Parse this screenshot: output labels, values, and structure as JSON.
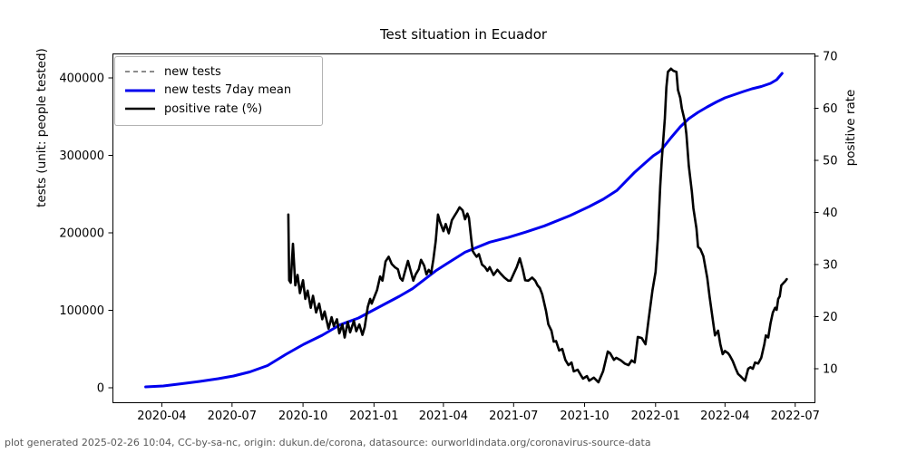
{
  "title": "Test situation in Ecuador",
  "footer": "plot generated 2025-02-26 10:04, CC-by-sa-nc, origin: dukun.de/corona, datasource: ourworldindata.org/coronavirus-source-data",
  "colors": {
    "background": "#ffffff",
    "axis": "#000000",
    "footer_text": "#595959",
    "new_tests": "#8c8c8c",
    "seven_day_mean": "#0000ee",
    "positive_rate": "#000000"
  },
  "chart_data": {
    "type": "line",
    "title": "Test situation in Ecuador",
    "xlabel": "",
    "x_axis": {
      "epoch": "days since 2020-01-01",
      "range_days": [
        27,
        937
      ],
      "ticks": [
        {
          "day": 91,
          "label": "2020-04"
        },
        {
          "day": 182,
          "label": "2020-07"
        },
        {
          "day": 274,
          "label": "2020-10"
        },
        {
          "day": 366,
          "label": "2021-01"
        },
        {
          "day": 456,
          "label": "2021-04"
        },
        {
          "day": 547,
          "label": "2021-07"
        },
        {
          "day": 639,
          "label": "2021-10"
        },
        {
          "day": 731,
          "label": "2022-01"
        },
        {
          "day": 821,
          "label": "2022-04"
        },
        {
          "day": 912,
          "label": "2022-07"
        }
      ]
    },
    "y_left": {
      "label": "tests (unit: people tested)",
      "range": [
        -19000,
        435000
      ],
      "ticks": [
        {
          "value": 0,
          "label": "0"
        },
        {
          "value": 100000,
          "label": "100000"
        },
        {
          "value": 200000,
          "label": "200000"
        },
        {
          "value": 300000,
          "label": "300000"
        },
        {
          "value": 400000,
          "label": "400000"
        }
      ]
    },
    "y_right": {
      "label": "positive rate",
      "range": [
        3.6,
        71
      ],
      "ticks": [
        {
          "value": 10,
          "label": "10"
        },
        {
          "value": 20,
          "label": "20"
        },
        {
          "value": 30,
          "label": "30"
        },
        {
          "value": 40,
          "label": "40"
        },
        {
          "value": 50,
          "label": "50"
        },
        {
          "value": 60,
          "label": "60"
        },
        {
          "value": 70,
          "label": "70"
        }
      ]
    },
    "legend": [
      {
        "label": "new tests",
        "color": "#8c8c8c",
        "dash": true
      },
      {
        "label": "new tests 7day mean",
        "color": "#0000ee",
        "dash": false
      },
      {
        "label": "positive rate (%)",
        "color": "#000000",
        "dash": false
      }
    ],
    "series": [
      {
        "name": "new tests",
        "axis": "left",
        "color": "#8c8c8c",
        "dash": true,
        "width": 1.8,
        "visible_in_plot": false,
        "note": "listed in legend but not visibly distinct in the plot",
        "points": []
      },
      {
        "name": "new tests 7day mean",
        "axis": "left",
        "color": "#0000ee",
        "dash": false,
        "width": 3,
        "visible_in_plot": true,
        "points": [
          [
            70,
            1200
          ],
          [
            93,
            2300
          ],
          [
            117,
            5300
          ],
          [
            140,
            8200
          ],
          [
            164,
            11700
          ],
          [
            184,
            15200
          ],
          [
            205,
            20500
          ],
          [
            228,
            28700
          ],
          [
            252,
            43300
          ],
          [
            275,
            56100
          ],
          [
            299,
            67800
          ],
          [
            322,
            81300
          ],
          [
            346,
            90100
          ],
          [
            368,
            101800
          ],
          [
            399,
            118100
          ],
          [
            416,
            128000
          ],
          [
            446,
            151000
          ],
          [
            460,
            160000
          ],
          [
            484,
            175000
          ],
          [
            516,
            188000
          ],
          [
            540,
            194000
          ],
          [
            563,
            201000
          ],
          [
            587,
            209000
          ],
          [
            620,
            222200
          ],
          [
            645,
            233900
          ],
          [
            663,
            243300
          ],
          [
            681,
            254900
          ],
          [
            704,
            278300
          ],
          [
            716,
            288900
          ],
          [
            728,
            299400
          ],
          [
            737,
            305300
          ],
          [
            751,
            322800
          ],
          [
            763,
            336800
          ],
          [
            774,
            347400
          ],
          [
            786,
            355500
          ],
          [
            798,
            362600
          ],
          [
            810,
            369000
          ],
          [
            821,
            374300
          ],
          [
            833,
            378400
          ],
          [
            845,
            382500
          ],
          [
            856,
            386000
          ],
          [
            868,
            388900
          ],
          [
            880,
            393000
          ],
          [
            888,
            397700
          ],
          [
            895,
            405900
          ]
        ]
      },
      {
        "name": "positive rate (%)",
        "axis": "right",
        "color": "#000000",
        "dash": false,
        "width": 2.6,
        "visible_in_plot": true,
        "points": [
          [
            255,
            39.6
          ],
          [
            256,
            27
          ],
          [
            258,
            26.5
          ],
          [
            261,
            34
          ],
          [
            264,
            26
          ],
          [
            267,
            28
          ],
          [
            270,
            24.5
          ],
          [
            274,
            27
          ],
          [
            277,
            23.4
          ],
          [
            280,
            25
          ],
          [
            284,
            21.7
          ],
          [
            287,
            24
          ],
          [
            291,
            20.8
          ],
          [
            295,
            22.5
          ],
          [
            299,
            19.5
          ],
          [
            302,
            21
          ],
          [
            307,
            17.7
          ],
          [
            311,
            19.9
          ],
          [
            314,
            18.2
          ],
          [
            318,
            19.5
          ],
          [
            321,
            16.8
          ],
          [
            325,
            18.5
          ],
          [
            328,
            16
          ],
          [
            332,
            19
          ],
          [
            335,
            17
          ],
          [
            340,
            19.2
          ],
          [
            343,
            17.2
          ],
          [
            347,
            18.5
          ],
          [
            351,
            16.5
          ],
          [
            354,
            18
          ],
          [
            358,
            21.9
          ],
          [
            361,
            23.4
          ],
          [
            363,
            22.5
          ],
          [
            367,
            24
          ],
          [
            370,
            25.1
          ],
          [
            374,
            27.7
          ],
          [
            377,
            26.9
          ],
          [
            381,
            30.6
          ],
          [
            385,
            31.5
          ],
          [
            389,
            30.1
          ],
          [
            393,
            29.5
          ],
          [
            397,
            29.1
          ],
          [
            400,
            27.4
          ],
          [
            403,
            26.9
          ],
          [
            406,
            28.6
          ],
          [
            410,
            30.7
          ],
          [
            413,
            29.1
          ],
          [
            417,
            26.9
          ],
          [
            420,
            28.1
          ],
          [
            424,
            29.1
          ],
          [
            427,
            30.9
          ],
          [
            431,
            29.8
          ],
          [
            434,
            28.1
          ],
          [
            437,
            29
          ],
          [
            440,
            28.3
          ],
          [
            443,
            31
          ],
          [
            446,
            34.5
          ],
          [
            449,
            39.6
          ],
          [
            452,
            38
          ],
          [
            456,
            36.4
          ],
          [
            459,
            37.8
          ],
          [
            463,
            36
          ],
          [
            467,
            38.5
          ],
          [
            471,
            39.5
          ],
          [
            474,
            40.2
          ],
          [
            477,
            41
          ],
          [
            481,
            40.4
          ],
          [
            484,
            38.7
          ],
          [
            487,
            39.8
          ],
          [
            489,
            39
          ],
          [
            492,
            35
          ],
          [
            494,
            32.6
          ],
          [
            496,
            32.1
          ],
          [
            499,
            31.5
          ],
          [
            502,
            32
          ],
          [
            506,
            30
          ],
          [
            510,
            29.5
          ],
          [
            513,
            28.8
          ],
          [
            516,
            29.5
          ],
          [
            521,
            28
          ],
          [
            526,
            29
          ],
          [
            530,
            28.3
          ],
          [
            535,
            27.5
          ],
          [
            540,
            26.9
          ],
          [
            543,
            26.9
          ],
          [
            548,
            28.5
          ],
          [
            551,
            29.5
          ],
          [
            555,
            31.2
          ],
          [
            559,
            29
          ],
          [
            562,
            27
          ],
          [
            566,
            26.9
          ],
          [
            571,
            27.5
          ],
          [
            575,
            26.9
          ],
          [
            578,
            26
          ],
          [
            581,
            25.5
          ],
          [
            584,
            24.3
          ],
          [
            589,
            21.1
          ],
          [
            592,
            18.5
          ],
          [
            596,
            17.3
          ],
          [
            599,
            15.2
          ],
          [
            602,
            15.3
          ],
          [
            606,
            13.5
          ],
          [
            610,
            13.8
          ],
          [
            614,
            11.7
          ],
          [
            618,
            10.7
          ],
          [
            622,
            11.2
          ],
          [
            625,
            9.5
          ],
          [
            630,
            9.8
          ],
          [
            634,
            8.8
          ],
          [
            637,
            8.1
          ],
          [
            642,
            8.6
          ],
          [
            645,
            7.7
          ],
          [
            651,
            8.3
          ],
          [
            657,
            7.4
          ],
          [
            663,
            9.5
          ],
          [
            669,
            13.3
          ],
          [
            672,
            13
          ],
          [
            677,
            11.7
          ],
          [
            680,
            12.1
          ],
          [
            686,
            11.6
          ],
          [
            691,
            11
          ],
          [
            696,
            10.7
          ],
          [
            700,
            11.6
          ],
          [
            704,
            11.2
          ],
          [
            708,
            16.1
          ],
          [
            713,
            15.9
          ],
          [
            718,
            14.7
          ],
          [
            722,
            19.4
          ],
          [
            727,
            25.1
          ],
          [
            731,
            28.6
          ],
          [
            734,
            35
          ],
          [
            737,
            45
          ],
          [
            739,
            50
          ],
          [
            743,
            58
          ],
          [
            745,
            64
          ],
          [
            747,
            67
          ],
          [
            751,
            67.6
          ],
          [
            754,
            67.2
          ],
          [
            758,
            67
          ],
          [
            760,
            63.5
          ],
          [
            763,
            62
          ],
          [
            765,
            60
          ],
          [
            769,
            57.5
          ],
          [
            771,
            55
          ],
          [
            774,
            49
          ],
          [
            778,
            44
          ],
          [
            780,
            40.8
          ],
          [
            784,
            36.9
          ],
          [
            786,
            33.4
          ],
          [
            789,
            33
          ],
          [
            793,
            31.6
          ],
          [
            798,
            27.4
          ],
          [
            801,
            23.9
          ],
          [
            806,
            18.5
          ],
          [
            808,
            16.4
          ],
          [
            812,
            17.3
          ],
          [
            815,
            14.7
          ],
          [
            818,
            12.8
          ],
          [
            821,
            13.4
          ],
          [
            825,
            13
          ],
          [
            827,
            12.6
          ],
          [
            831,
            11.5
          ],
          [
            835,
            10
          ],
          [
            838,
            9
          ],
          [
            841,
            8.6
          ],
          [
            845,
            8
          ],
          [
            847,
            7.7
          ],
          [
            851,
            10
          ],
          [
            854,
            10.3
          ],
          [
            857,
            10
          ],
          [
            860,
            11.2
          ],
          [
            864,
            11
          ],
          [
            868,
            12.1
          ],
          [
            872,
            14.7
          ],
          [
            874,
            16.4
          ],
          [
            877,
            16
          ],
          [
            880,
            18.7
          ],
          [
            883,
            20.8
          ],
          [
            886,
            21.7
          ],
          [
            888,
            21.3
          ],
          [
            890,
            23.4
          ],
          [
            892,
            23.9
          ],
          [
            894,
            26
          ],
          [
            897,
            26.5
          ],
          [
            899,
            26.8
          ],
          [
            901,
            27.2
          ]
        ]
      }
    ],
    "grid": false,
    "legend_position": "upper left"
  }
}
